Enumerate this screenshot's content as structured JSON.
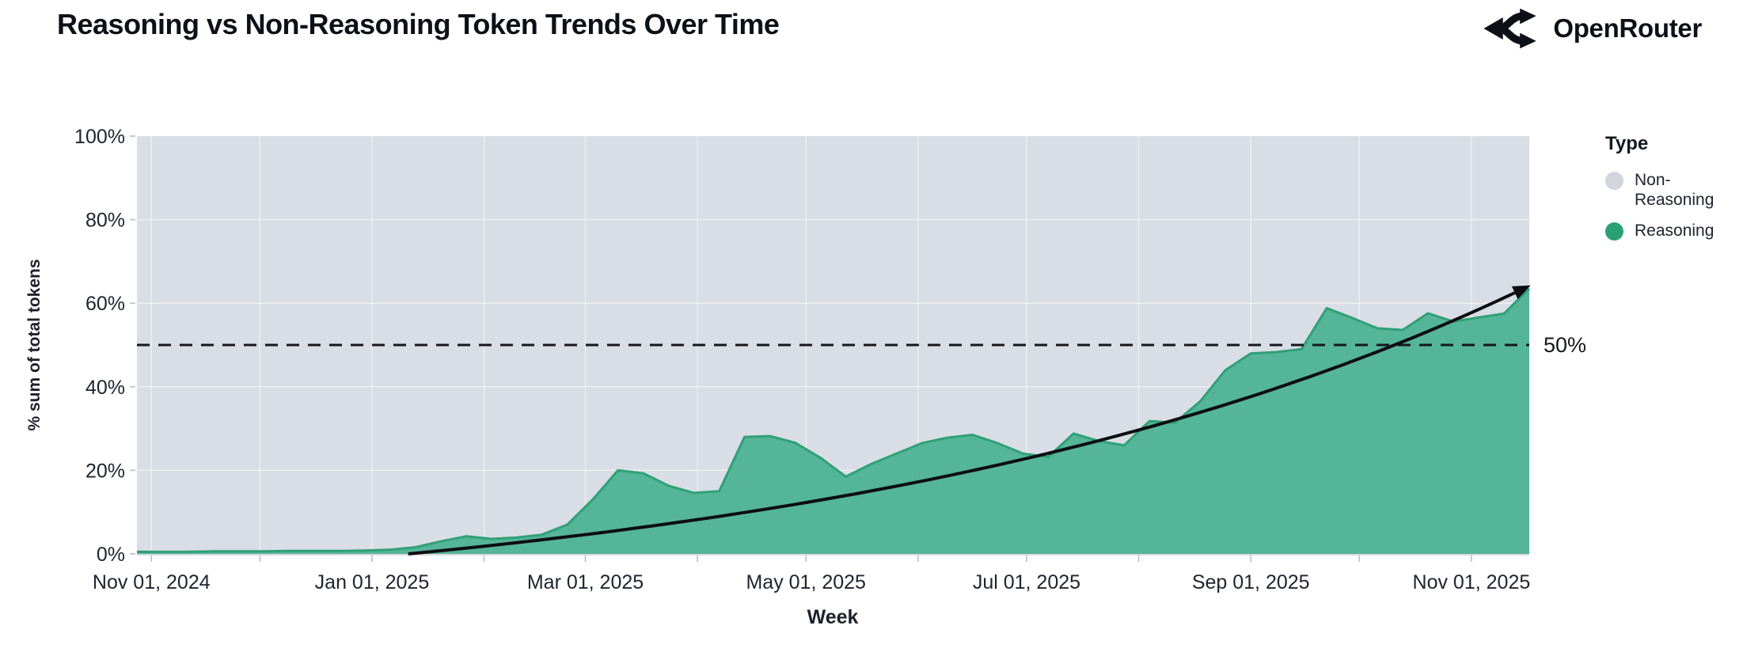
{
  "header": {
    "title": "Reasoning vs Non-Reasoning Token Trends Over Time",
    "brand": "OpenRouter"
  },
  "chart_data": {
    "type": "area",
    "stacked_percent": true,
    "title": "Reasoning vs Non-Reasoning Token Trends Over Time",
    "xlabel": "Week",
    "ylabel": "% sum of total tokens",
    "ylim": [
      0,
      100
    ],
    "grid": true,
    "legend": {
      "title": "Type",
      "position": "right",
      "items": [
        {
          "label": "Non-Reasoning",
          "color": "#d2d5dc"
        },
        {
          "label": "Reasoning",
          "color": "#2aa074"
        }
      ]
    },
    "y_ticks": [
      {
        "value": 0,
        "label": "0%"
      },
      {
        "value": 20,
        "label": "20%"
      },
      {
        "value": 40,
        "label": "40%"
      },
      {
        "value": 60,
        "label": "60%"
      },
      {
        "value": 80,
        "label": "80%"
      },
      {
        "value": 100,
        "label": "100%"
      }
    ],
    "x_ticks": [
      {
        "date": "2024-11-01",
        "label": "Nov 01, 2024"
      },
      {
        "date": "2025-01-01",
        "label": "Jan 01, 2025"
      },
      {
        "date": "2025-03-01",
        "label": "Mar 01, 2025"
      },
      {
        "date": "2025-05-01",
        "label": "May 01, 2025"
      },
      {
        "date": "2025-07-01",
        "label": "Jul 01, 2025"
      },
      {
        "date": "2025-09-01",
        "label": "Sep 01, 2025"
      },
      {
        "date": "2025-11-01",
        "label": "Nov 01, 2025"
      }
    ],
    "series": [
      {
        "name": "Reasoning",
        "role": "area",
        "color_fill": "#55b598",
        "color_line": "#2fa077"
      },
      {
        "name": "Non-Reasoning",
        "role": "remainder-to-100%",
        "color_fill": "#d9dde5"
      }
    ],
    "points_series": "Reasoning share of total tokens, % by week (Non-Reasoning = 100 - value)",
    "points": [
      [
        "2024-10-28",
        0.5
      ],
      [
        "2024-11-04",
        0.5
      ],
      [
        "2024-11-11",
        0.5
      ],
      [
        "2024-11-18",
        0.6
      ],
      [
        "2024-11-25",
        0.6
      ],
      [
        "2024-12-02",
        0.6
      ],
      [
        "2024-12-09",
        0.7
      ],
      [
        "2024-12-16",
        0.7
      ],
      [
        "2024-12-23",
        0.7
      ],
      [
        "2024-12-30",
        0.8
      ],
      [
        "2025-01-06",
        1.0
      ],
      [
        "2025-01-13",
        1.6
      ],
      [
        "2025-01-20",
        3.0
      ],
      [
        "2025-01-27",
        4.2
      ],
      [
        "2025-02-03",
        3.6
      ],
      [
        "2025-02-10",
        3.9
      ],
      [
        "2025-02-17",
        4.6
      ],
      [
        "2025-02-24",
        7.0
      ],
      [
        "2025-03-03",
        13.0
      ],
      [
        "2025-03-10",
        20.0
      ],
      [
        "2025-03-17",
        19.3
      ],
      [
        "2025-03-24",
        16.3
      ],
      [
        "2025-03-31",
        14.6
      ],
      [
        "2025-04-07",
        15.0
      ],
      [
        "2025-04-14",
        28.0
      ],
      [
        "2025-04-21",
        28.2
      ],
      [
        "2025-04-28",
        26.6
      ],
      [
        "2025-05-05",
        23.0
      ],
      [
        "2025-05-12",
        18.5
      ],
      [
        "2025-05-19",
        21.5
      ],
      [
        "2025-05-26",
        24.0
      ],
      [
        "2025-06-02",
        26.5
      ],
      [
        "2025-06-09",
        27.8
      ],
      [
        "2025-06-16",
        28.5
      ],
      [
        "2025-06-23",
        26.5
      ],
      [
        "2025-06-30",
        24.0
      ],
      [
        "2025-07-07",
        23.2
      ],
      [
        "2025-07-14",
        28.8
      ],
      [
        "2025-07-21",
        27.0
      ],
      [
        "2025-07-28",
        26.0
      ],
      [
        "2025-08-04",
        31.8
      ],
      [
        "2025-08-11",
        31.4
      ],
      [
        "2025-08-18",
        36.5
      ],
      [
        "2025-08-25",
        44.0
      ],
      [
        "2025-09-01",
        48.0
      ],
      [
        "2025-09-08",
        48.3
      ],
      [
        "2025-09-15",
        49.0
      ],
      [
        "2025-09-22",
        58.8
      ],
      [
        "2025-09-29",
        56.5
      ],
      [
        "2025-10-06",
        54.0
      ],
      [
        "2025-10-13",
        53.6
      ],
      [
        "2025-10-20",
        57.6
      ],
      [
        "2025-10-27",
        55.6
      ],
      [
        "2025-11-03",
        56.6
      ],
      [
        "2025-11-10",
        57.5
      ],
      [
        "2025-11-17",
        63.5
      ]
    ],
    "reference_line": {
      "value": 50,
      "label": "50%",
      "style": "dashed",
      "color": "#16181d"
    },
    "trend_arrow": {
      "curve": "exponential",
      "start_date": "2025-01-11",
      "start_value": 0,
      "end_date": "2025-11-13",
      "end_value": 62.5,
      "color": "#0c0e12"
    },
    "colors": {
      "plot_background": "#d9dde5",
      "gridline": "#ffffff",
      "axis_text": "#20242e",
      "tick_mark": "#b9bdc6"
    }
  }
}
